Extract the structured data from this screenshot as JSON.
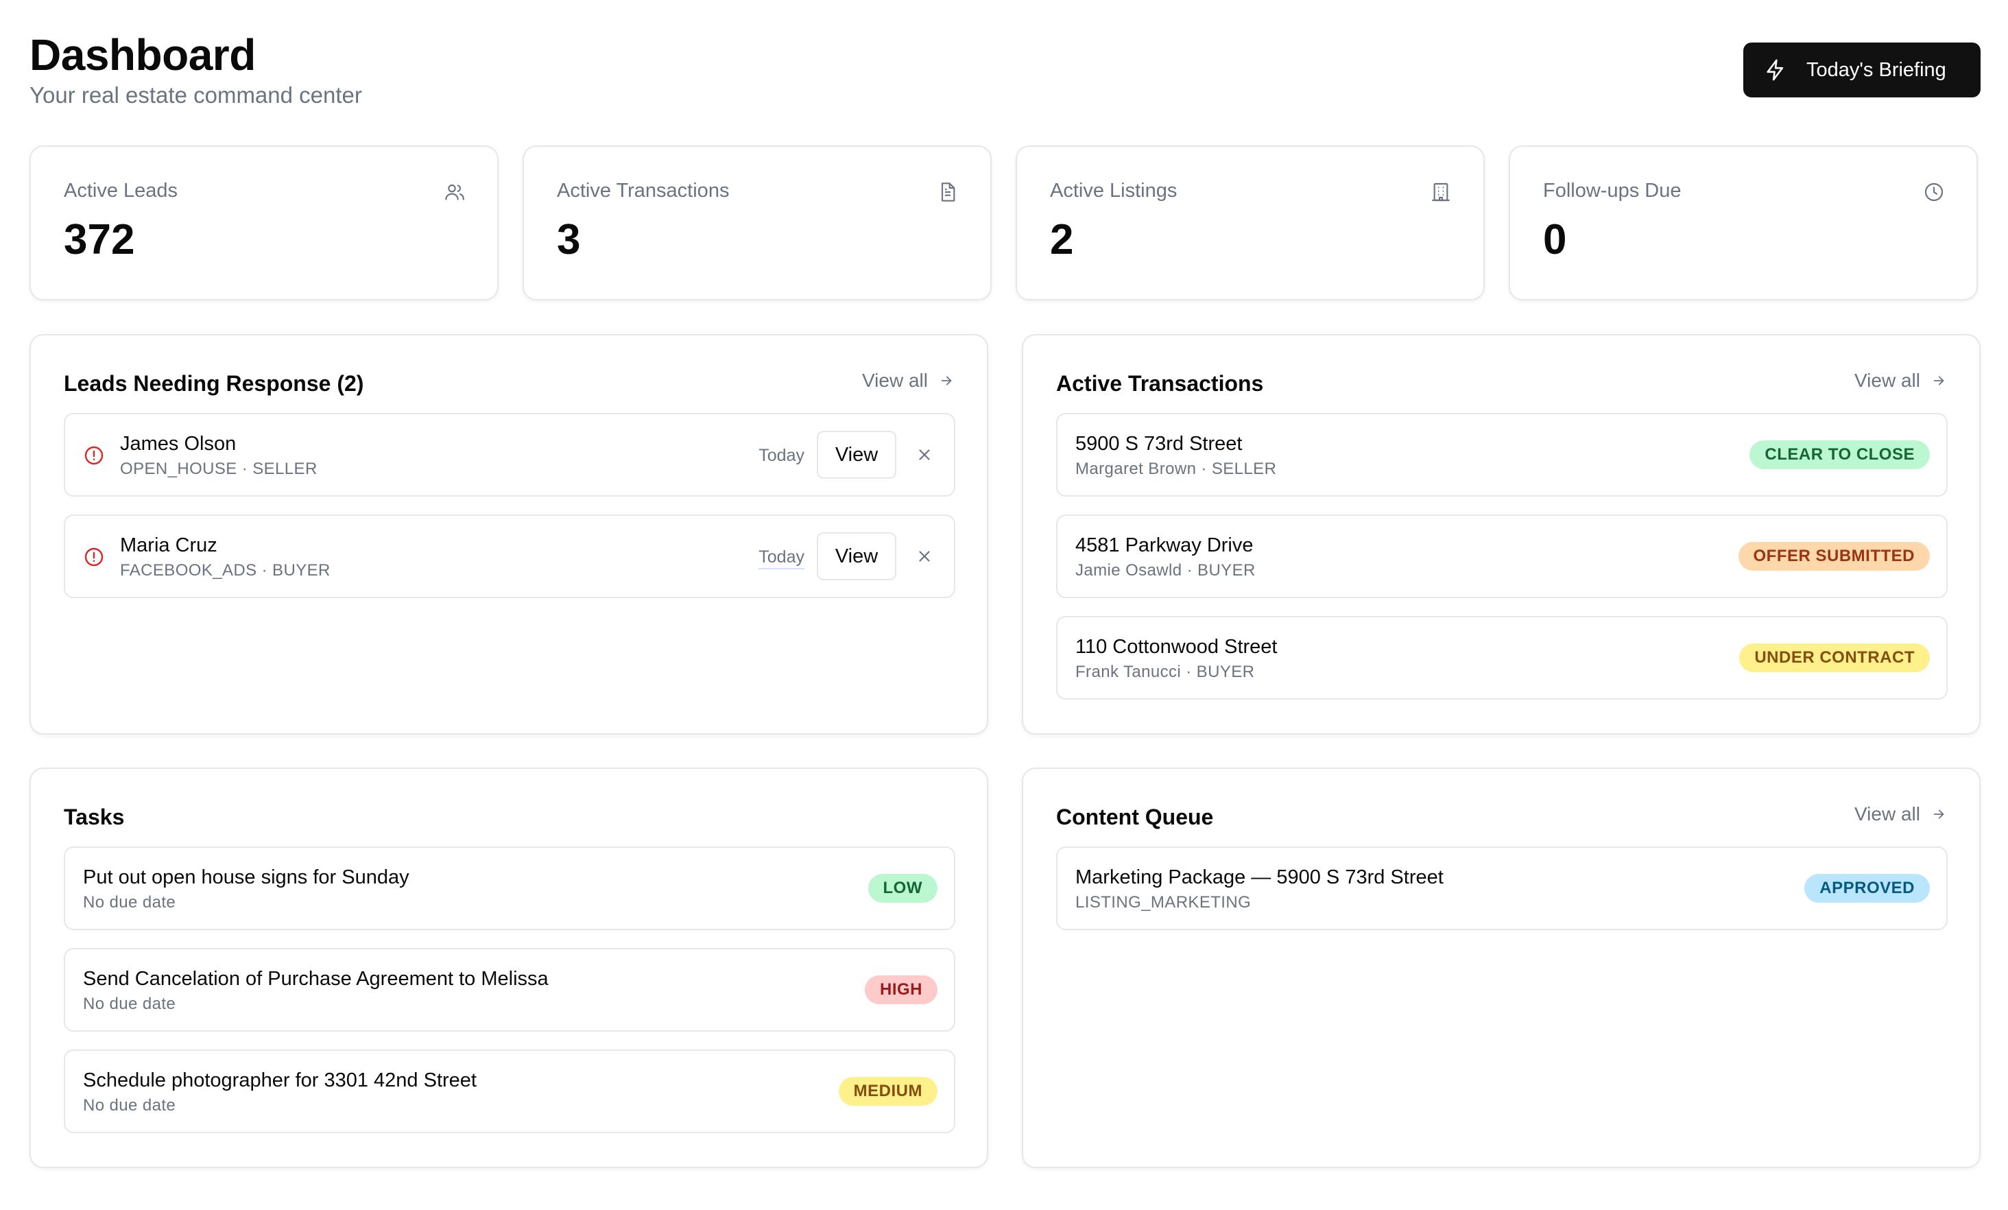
{
  "header": {
    "title": "Dashboard",
    "subtitle": "Your real estate command center",
    "briefing_button": "Today's Briefing",
    "briefing_icon": "lightning-icon"
  },
  "stats": [
    {
      "label": "Active Leads",
      "value": "372",
      "icon": "users-icon"
    },
    {
      "label": "Active Transactions",
      "value": "3",
      "icon": "document-icon"
    },
    {
      "label": "Active Listings",
      "value": "2",
      "icon": "building-icon"
    },
    {
      "label": "Follow-ups Due",
      "value": "0",
      "icon": "clock-icon"
    }
  ],
  "leads_panel": {
    "title": "Leads Needing Response (2)",
    "view_all": "View all",
    "items": [
      {
        "name": "James Olson",
        "meta": "OPEN_HOUSE · SELLER",
        "time": "Today",
        "view": "View"
      },
      {
        "name": "Maria Cruz",
        "meta": "FACEBOOK_ADS · BUYER",
        "time": "Today",
        "view": "View"
      }
    ]
  },
  "transactions_panel": {
    "title": "Active Transactions",
    "view_all": "View all",
    "items": [
      {
        "address": "5900 S 73rd Street",
        "meta": "Margaret Brown · SELLER",
        "status": "CLEAR TO CLOSE",
        "status_color": "#bbf7d0"
      },
      {
        "address": "4581 Parkway Drive",
        "meta": "Jamie Osawld · BUYER",
        "status": "OFFER SUBMITTED",
        "status_color": "#fed7aa"
      },
      {
        "address": "110 Cottonwood Street",
        "meta": "Frank Tanucci · BUYER",
        "status": "UNDER CONTRACT",
        "status_color": "#fef08a"
      }
    ]
  },
  "tasks_panel": {
    "title": "Tasks",
    "items": [
      {
        "title": "Put out open house signs for Sunday",
        "due": "No due date",
        "priority": "LOW",
        "priority_color": "#bbf7d0"
      },
      {
        "title": "Send Cancelation of Purchase Agreement to Melissa",
        "due": "No due date",
        "priority": "HIGH",
        "priority_color": "#fecaca"
      },
      {
        "title": "Schedule photographer for 3301 42nd Street",
        "due": "No due date",
        "priority": "MEDIUM",
        "priority_color": "#fef08a"
      }
    ]
  },
  "content_panel": {
    "title": "Content Queue",
    "view_all": "View all",
    "items": [
      {
        "title": "Marketing Package — 5900 S 73rd Street",
        "type": "LISTING_MARKETING",
        "status": "APPROVED",
        "status_color": "#bae6fd"
      }
    ]
  }
}
